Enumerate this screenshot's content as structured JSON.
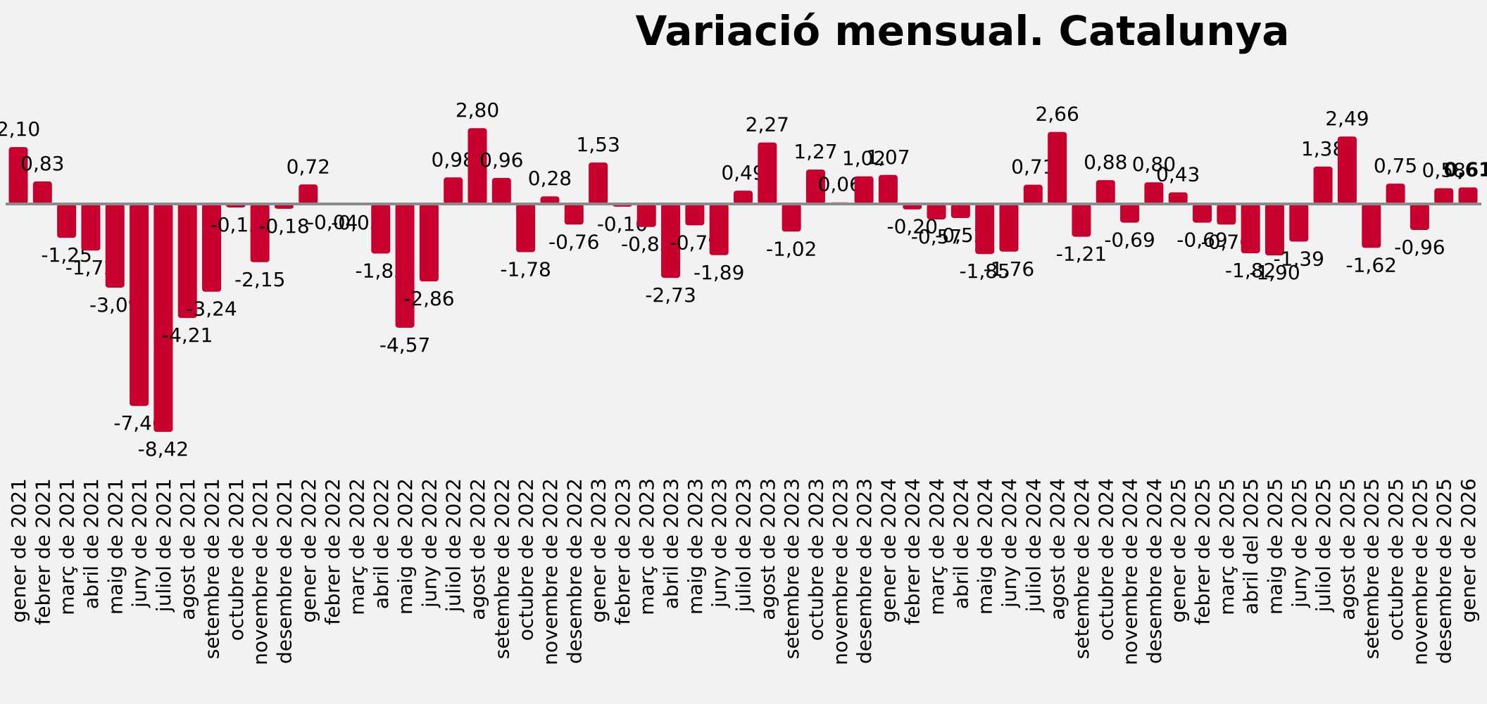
{
  "chart_data": {
    "type": "bar",
    "title": "Variació mensual. Catalunya",
    "categories": [
      "gener de 2021",
      "febrer de 2021",
      "març de 2021",
      "abril de 2021",
      "maig de 2021",
      "juny de 2021",
      "juliol de 2021",
      "agost de 2021",
      "setembre de 2021",
      "octubre de 2021",
      "novembre de 2021",
      "desembre de 2021",
      "gener de 2022",
      "febrer de 2022",
      "març de 2022",
      "abril de 2022",
      "maig de 2022",
      "juny de 2022",
      "juliol de 2022",
      "agost de 2022",
      "setembre de 2022",
      "octubre de 2022",
      "novembre de 2022",
      "desembre de 2022",
      "gener de 2023",
      "febrer de 2023",
      "març de 2023",
      "abril de 2023",
      "maig de 2023",
      "juny de 2023",
      "juliol de 2023",
      "agost de 2023",
      "setembre de 2023",
      "octubre de 2023",
      "novembre de 2023",
      "desembre de 2023",
      "gener de 2024",
      "febrer de 2024",
      "març de 2024",
      "abril de 2024",
      "maig de 2024",
      "juny de 2024",
      "juliol de 2024",
      "agost de 2024",
      "setembre de 2024",
      "octubre de 2024",
      "novembre de 2024",
      "desembre de 2024",
      "gener de 2025",
      "febrer de 2025",
      "març de 2025",
      "abril del 2025",
      "maig de 2025",
      "juny de 2025",
      "juliol de 2025",
      "agost de 2025",
      "setembre de 2025",
      "octubre de 2025",
      "novembre de 2025",
      "desembre de 2025",
      "gener de 2026"
    ],
    "values": [
      2.1,
      0.83,
      -1.25,
      -1.72,
      -3.09,
      -7.46,
      -8.42,
      -4.21,
      -3.24,
      -0.13,
      -2.15,
      -0.18,
      0.72,
      -0.04,
      -0.05,
      -1.83,
      -4.57,
      -2.86,
      0.98,
      2.8,
      0.96,
      -1.78,
      0.28,
      -0.76,
      1.53,
      -0.1,
      -0.85,
      -2.73,
      -0.79,
      -1.89,
      0.49,
      2.27,
      -1.02,
      1.27,
      0.06,
      1.02,
      1.07,
      -0.2,
      -0.57,
      -0.52,
      -1.85,
      -1.76,
      0.71,
      2.66,
      -1.21,
      0.88,
      -0.69,
      0.8,
      0.43,
      -0.69,
      -0.76,
      -1.82,
      -1.9,
      -1.39,
      1.38,
      2.49,
      -1.62,
      0.75,
      -0.96,
      0.58,
      0.61
    ],
    "value_labels": [
      "2,10",
      "0,83",
      "-1,25",
      "-1,72",
      "-3,09",
      "-7,46",
      "-8,42",
      "-4,21",
      "-3,24",
      "-0,13",
      "-2,15",
      "-0,18",
      "0,72",
      "-0,04",
      "-0,05",
      "-1,83",
      "-4,57",
      "-2,86",
      "0,98",
      "2,80",
      "0,96",
      "-1,78",
      "0,28",
      "-0,76",
      "1,53",
      "-0,10",
      "-0,85",
      "-2,73",
      "-0,79",
      "-1,89",
      "0,49",
      "2,27",
      "-1,02",
      "1,27",
      "0,06",
      "1,02",
      "1,07",
      "-0,20",
      "-0,57",
      "-0,52",
      "-1,85",
      "-1,76",
      "0,71",
      "2,66",
      "-1,21",
      "0,88",
      "-0,69",
      "0,80",
      "0,43",
      "-0,69",
      "-0,76",
      "-1,82",
      "-1,90",
      "-1,39",
      "1,38",
      "2,49",
      "-1,62",
      "0,75",
      "-0,96",
      "0,58",
      "0,61"
    ],
    "color": "#c8002d"
  }
}
